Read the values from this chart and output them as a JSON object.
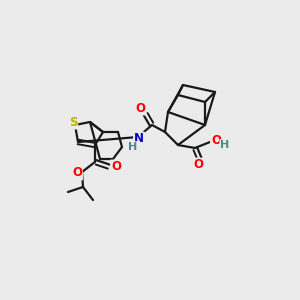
{
  "background_color": "#ebebeb",
  "atom_colors": {
    "S": "#b8b800",
    "N": "#0000cc",
    "O": "#ff0000",
    "H": "#4a8a8a",
    "C": "#000000"
  },
  "bond_color": "#1a1a1a",
  "line_width": 1.6
}
